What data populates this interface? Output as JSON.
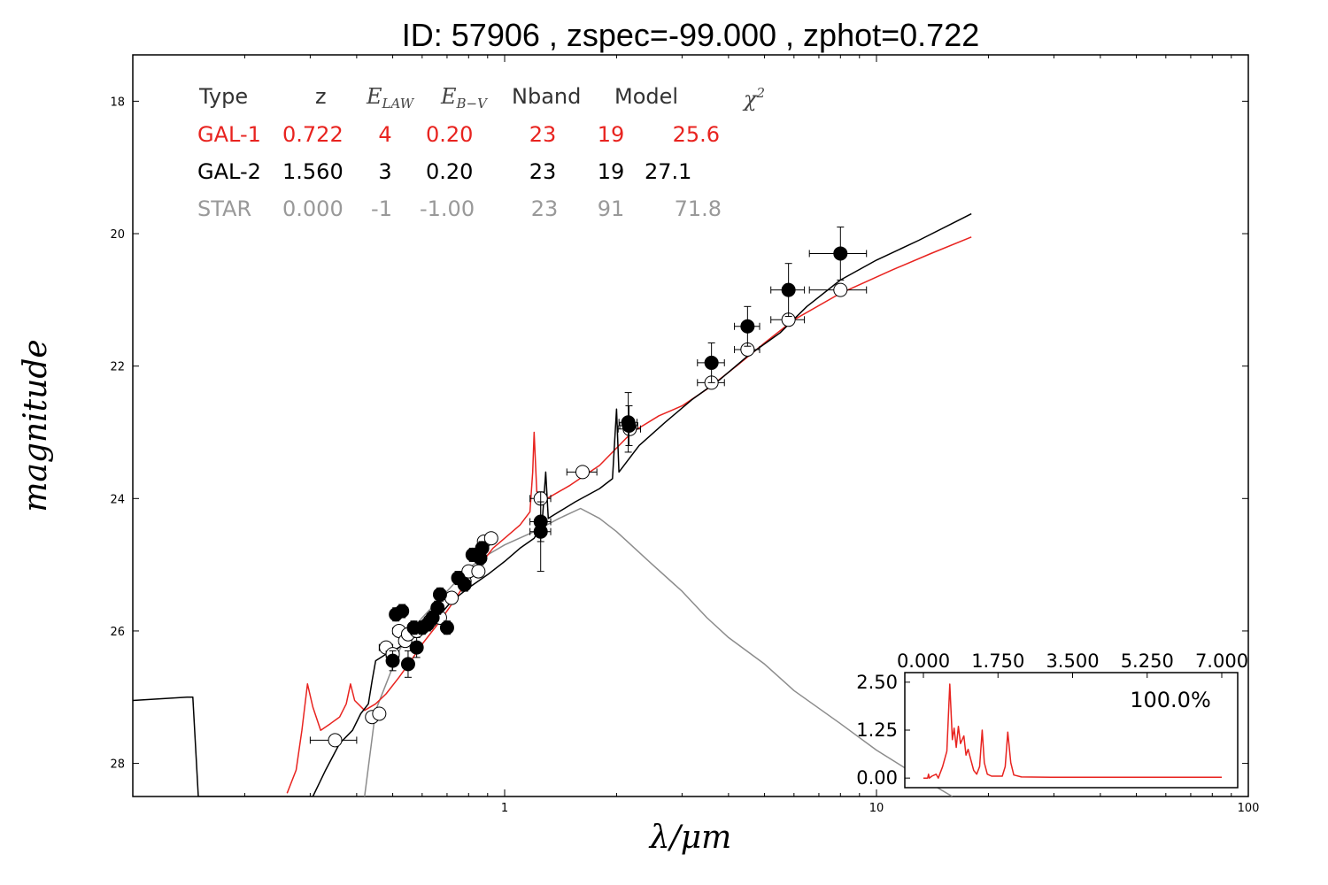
{
  "title": "ID:  57906 , zspec=-99.000 , zphot=0.722",
  "colors": {
    "gal1": "#e8231f",
    "gal2": "#000000",
    "star": "#8c8c8c"
  },
  "table": {
    "headers": {
      "type": "Type",
      "z": "z",
      "elaw": "E",
      "elaw_sub": "LAW",
      "ebv": "E",
      "ebv_sub": "B−V",
      "nband": "Nband",
      "model": "Model",
      "chi2": "χ",
      "chi2_sup": "2"
    },
    "rows": [
      {
        "type": "GAL-1",
        "z": "0.722",
        "elaw": "4",
        "ebv": "0.20",
        "nband": "23",
        "model": "19",
        "chi2": "25.6",
        "color": "#e8231f"
      },
      {
        "type": "GAL-2",
        "z": "1.560",
        "elaw": "3",
        "ebv": "0.20",
        "nband": "23",
        "model": "19",
        "chi2": "27.1",
        "color": "#000000"
      },
      {
        "type": "STAR",
        "z": "0.000",
        "elaw": "-1",
        "ebv": "-1.00",
        "nband": "23",
        "model": "91",
        "chi2": "71.8",
        "color": "#999999"
      }
    ]
  },
  "chart_data": [
    {
      "type": "line",
      "xlabel": "λ/μm",
      "ylabel": "magnitude",
      "xscale": "log",
      "xlim": [
        0.1,
        100
      ],
      "ylim": [
        28.5,
        17.3
      ],
      "x_ticks": [
        "1",
        "10",
        "100"
      ],
      "y_ticks": [
        "18",
        "20",
        "22",
        "24",
        "26",
        "28"
      ],
      "y_tick_values": [
        18,
        20,
        22,
        24,
        26,
        28
      ],
      "x_tick_values": [
        1,
        10,
        100
      ],
      "series": [
        {
          "name": "GAL-1",
          "color": "#e8231f",
          "points": [
            [
              0.26,
              28.45
            ],
            [
              0.275,
              28.1
            ],
            [
              0.285,
              27.5
            ],
            [
              0.295,
              26.8
            ],
            [
              0.305,
              27.15
            ],
            [
              0.32,
              27.5
            ],
            [
              0.34,
              27.4
            ],
            [
              0.36,
              27.3
            ],
            [
              0.375,
              27.1
            ],
            [
              0.385,
              26.8
            ],
            [
              0.395,
              27.05
            ],
            [
              0.42,
              27.2
            ],
            [
              0.45,
              27.1
            ],
            [
              0.48,
              26.95
            ],
            [
              0.52,
              26.7
            ],
            [
              0.56,
              26.45
            ],
            [
              0.6,
              26.2
            ],
            [
              0.66,
              25.9
            ],
            [
              0.72,
              25.6
            ],
            [
              0.78,
              25.3
            ],
            [
              0.86,
              25.0
            ],
            [
              0.93,
              24.75
            ],
            [
              1.0,
              24.6
            ],
            [
              1.1,
              24.4
            ],
            [
              1.17,
              24.2
            ],
            [
              1.19,
              23.6
            ],
            [
              1.2,
              23.0
            ],
            [
              1.22,
              23.9
            ],
            [
              1.3,
              24.0
            ],
            [
              1.5,
              23.8
            ],
            [
              1.8,
              23.5
            ],
            [
              2.2,
              23.0
            ],
            [
              2.6,
              22.75
            ],
            [
              3.0,
              22.6
            ],
            [
              3.5,
              22.35
            ],
            [
              4.2,
              22.0
            ],
            [
              5.0,
              21.65
            ],
            [
              6.0,
              21.3
            ],
            [
              8.0,
              20.9
            ],
            [
              11,
              20.55
            ],
            [
              14,
              20.3
            ],
            [
              18,
              20.05
            ]
          ]
        },
        {
          "name": "GAL-2",
          "color": "#000000",
          "points": [
            [
              0.1,
              27.05
            ],
            [
              0.14,
              27.0
            ],
            [
              0.145,
              27.0
            ],
            [
              0.15,
              28.5
            ],
            [
              0.305,
              28.5
            ],
            [
              0.33,
              28.1
            ],
            [
              0.36,
              27.7
            ],
            [
              0.39,
              27.5
            ],
            [
              0.41,
              27.25
            ],
            [
              0.43,
              27.1
            ],
            [
              0.44,
              26.75
            ],
            [
              0.45,
              26.45
            ],
            [
              0.48,
              26.35
            ],
            [
              0.52,
              26.25
            ],
            [
              0.56,
              26.1
            ],
            [
              0.6,
              25.95
            ],
            [
              0.66,
              25.8
            ],
            [
              0.72,
              25.55
            ],
            [
              0.8,
              25.35
            ],
            [
              0.9,
              25.15
            ],
            [
              1.0,
              24.95
            ],
            [
              1.1,
              24.75
            ],
            [
              1.2,
              24.6
            ],
            [
              1.26,
              24.4
            ],
            [
              1.29,
              23.6
            ],
            [
              1.31,
              24.3
            ],
            [
              1.4,
              24.2
            ],
            [
              1.55,
              24.05
            ],
            [
              1.8,
              23.85
            ],
            [
              1.95,
              23.7
            ],
            [
              2.0,
              22.65
            ],
            [
              2.03,
              23.6
            ],
            [
              2.3,
              23.2
            ],
            [
              2.7,
              22.85
            ],
            [
              3.2,
              22.5
            ],
            [
              3.8,
              22.2
            ],
            [
              4.5,
              21.85
            ],
            [
              5.5,
              21.5
            ],
            [
              6.5,
              21.1
            ],
            [
              8.0,
              20.7
            ],
            [
              10.0,
              20.4
            ],
            [
              13,
              20.1
            ],
            [
              18,
              19.7
            ]
          ]
        },
        {
          "name": "STAR",
          "color": "#8c8c8c",
          "points": [
            [
              0.42,
              28.5
            ],
            [
              0.45,
              27.2
            ],
            [
              0.48,
              26.8
            ],
            [
              0.52,
              26.3
            ],
            [
              0.56,
              26.0
            ],
            [
              0.6,
              25.8
            ],
            [
              0.7,
              25.4
            ],
            [
              0.8,
              25.05
            ],
            [
              0.9,
              24.85
            ],
            [
              1.0,
              24.7
            ],
            [
              1.2,
              24.5
            ],
            [
              1.4,
              24.3
            ],
            [
              1.6,
              24.15
            ],
            [
              1.8,
              24.3
            ],
            [
              2.0,
              24.5
            ],
            [
              2.5,
              25.0
            ],
            [
              3.0,
              25.4
            ],
            [
              3.5,
              25.8
            ],
            [
              4.0,
              26.1
            ],
            [
              5.0,
              26.5
            ],
            [
              6.0,
              26.9
            ],
            [
              8.0,
              27.4
            ],
            [
              10,
              27.8
            ],
            [
              13,
              28.2
            ],
            [
              16,
              28.5
            ]
          ]
        }
      ],
      "filled_points": [
        {
          "x": 0.5,
          "y": 26.45,
          "xerr": 0,
          "yerr": 0.15
        },
        {
          "x": 0.51,
          "y": 25.75,
          "xerr": 0,
          "yerr": 0.1
        },
        {
          "x": 0.53,
          "y": 25.7,
          "xerr": 0.02,
          "yerr": 0.1
        },
        {
          "x": 0.55,
          "y": 26.5,
          "xerr": 0,
          "yerr": 0.2
        },
        {
          "x": 0.57,
          "y": 25.95,
          "xerr": 0.02,
          "yerr": 0.1
        },
        {
          "x": 0.58,
          "y": 26.25,
          "xerr": 0,
          "yerr": 0.15
        },
        {
          "x": 0.6,
          "y": 25.95,
          "xerr": 0.02,
          "yerr": 0.1
        },
        {
          "x": 0.62,
          "y": 25.9,
          "xerr": 0.02,
          "yerr": 0.1
        },
        {
          "x": 0.64,
          "y": 25.8,
          "xerr": 0.02,
          "yerr": 0.1
        },
        {
          "x": 0.66,
          "y": 25.65,
          "xerr": 0.02,
          "yerr": 0.1
        },
        {
          "x": 0.67,
          "y": 25.45,
          "xerr": 0.02,
          "yerr": 0.1
        },
        {
          "x": 0.7,
          "y": 25.95,
          "xerr": 0.02,
          "yerr": 0.1
        },
        {
          "x": 0.75,
          "y": 25.2,
          "xerr": 0.02,
          "yerr": 0.1
        },
        {
          "x": 0.78,
          "y": 25.3,
          "xerr": 0.02,
          "yerr": 0.1
        },
        {
          "x": 0.82,
          "y": 24.85,
          "xerr": 0.02,
          "yerr": 0.1
        },
        {
          "x": 0.86,
          "y": 24.9,
          "xerr": 0.02,
          "yerr": 0.1
        },
        {
          "x": 0.87,
          "y": 24.75,
          "xerr": 0.02,
          "yerr": 0.1
        },
        {
          "x": 1.25,
          "y": 24.35,
          "xerr": 0.08,
          "yerr": 0.3
        },
        {
          "x": 1.25,
          "y": 24.5,
          "xerr": 0.08,
          "yerr": 0.6
        },
        {
          "x": 2.15,
          "y": 22.85,
          "xerr": 0.12,
          "yerr": 0.45
        },
        {
          "x": 2.16,
          "y": 22.9,
          "xerr": 0.12,
          "yerr": 0.3
        },
        {
          "x": 3.6,
          "y": 21.95,
          "xerr": 0.3,
          "yerr": 0.3
        },
        {
          "x": 4.5,
          "y": 21.4,
          "xerr": 0.35,
          "yerr": 0.3
        },
        {
          "x": 5.8,
          "y": 20.85,
          "xerr": 0.6,
          "yerr": 0.4
        },
        {
          "x": 8.0,
          "y": 20.3,
          "xerr": 1.4,
          "yerr": 0.4
        }
      ],
      "open_points": [
        {
          "x": 0.35,
          "y": 27.65,
          "xerr": 0.05,
          "yerr": 0
        },
        {
          "x": 0.44,
          "y": 27.3,
          "xerr": 0,
          "yerr": 0
        },
        {
          "x": 0.46,
          "y": 27.25,
          "xerr": 0,
          "yerr": 0
        },
        {
          "x": 0.48,
          "y": 26.25,
          "xerr": 0.02,
          "yerr": 0
        },
        {
          "x": 0.5,
          "y": 26.35,
          "xerr": 0.02,
          "yerr": 0
        },
        {
          "x": 0.52,
          "y": 26.0,
          "xerr": 0.02,
          "yerr": 0
        },
        {
          "x": 0.54,
          "y": 26.15,
          "xerr": 0.02,
          "yerr": 0
        },
        {
          "x": 0.55,
          "y": 26.05,
          "xerr": 0.02,
          "yerr": 0
        },
        {
          "x": 0.58,
          "y": 26.0,
          "xerr": 0.02,
          "yerr": 0
        },
        {
          "x": 0.6,
          "y": 25.95,
          "xerr": 0.02,
          "yerr": 0
        },
        {
          "x": 0.63,
          "y": 25.85,
          "xerr": 0.02,
          "yerr": 0
        },
        {
          "x": 0.67,
          "y": 25.8,
          "xerr": 0.02,
          "yerr": 0
        },
        {
          "x": 0.72,
          "y": 25.5,
          "xerr": 0.02,
          "yerr": 0
        },
        {
          "x": 0.78,
          "y": 25.25,
          "xerr": 0.02,
          "yerr": 0
        },
        {
          "x": 0.8,
          "y": 25.1,
          "xerr": 0.02,
          "yerr": 0
        },
        {
          "x": 0.85,
          "y": 25.1,
          "xerr": 0.02,
          "yerr": 0
        },
        {
          "x": 0.88,
          "y": 24.65,
          "xerr": 0.02,
          "yerr": 0
        },
        {
          "x": 0.92,
          "y": 24.6,
          "xerr": 0.02,
          "yerr": 0
        },
        {
          "x": 1.25,
          "y": 24.0,
          "xerr": 0.08,
          "yerr": 0
        },
        {
          "x": 1.62,
          "y": 23.6,
          "xerr": 0.15,
          "yerr": 0
        },
        {
          "x": 2.17,
          "y": 22.95,
          "xerr": 0.15,
          "yerr": 0
        },
        {
          "x": 3.6,
          "y": 22.25,
          "xerr": 0.3,
          "yerr": 0
        },
        {
          "x": 4.5,
          "y": 21.75,
          "xerr": 0.35,
          "yerr": 0
        },
        {
          "x": 5.8,
          "y": 21.3,
          "xerr": 0.6,
          "yerr": 0
        },
        {
          "x": 8.0,
          "y": 20.85,
          "xerr": 1.4,
          "yerr": 0
        }
      ]
    },
    {
      "type": "line",
      "label": "100.0%",
      "xlim": [
        0,
        7
      ],
      "ylim": [
        -0.25,
        2.75
      ],
      "x_ticks": [
        "0.000",
        "1.750",
        "3.500",
        "5.250",
        "7.000"
      ],
      "y_ticks": [
        "0.00",
        "1.25",
        "2.50"
      ],
      "x_tick_values": [
        0,
        1.75,
        3.5,
        5.25,
        7.0
      ],
      "y_tick_values": [
        0,
        1.25,
        2.5
      ],
      "series": [
        {
          "color": "#e8231f",
          "points": [
            [
              0.0,
              0.0
            ],
            [
              0.1,
              0.0
            ],
            [
              0.12,
              0.1
            ],
            [
              0.14,
              0.0
            ],
            [
              0.2,
              0.05
            ],
            [
              0.3,
              0.1
            ],
            [
              0.35,
              0.0
            ],
            [
              0.45,
              0.3
            ],
            [
              0.5,
              0.5
            ],
            [
              0.55,
              0.7
            ],
            [
              0.62,
              2.45
            ],
            [
              0.68,
              1.0
            ],
            [
              0.72,
              1.3
            ],
            [
              0.77,
              0.8
            ],
            [
              0.82,
              1.35
            ],
            [
              0.87,
              0.9
            ],
            [
              0.95,
              1.1
            ],
            [
              1.0,
              0.6
            ],
            [
              1.05,
              0.75
            ],
            [
              1.12,
              0.45
            ],
            [
              1.18,
              0.2
            ],
            [
              1.25,
              0.1
            ],
            [
              1.32,
              0.3
            ],
            [
              1.38,
              1.25
            ],
            [
              1.43,
              0.4
            ],
            [
              1.5,
              0.1
            ],
            [
              1.6,
              0.05
            ],
            [
              1.75,
              0.05
            ],
            [
              1.85,
              0.05
            ],
            [
              1.92,
              0.3
            ],
            [
              1.98,
              1.2
            ],
            [
              2.05,
              0.4
            ],
            [
              2.12,
              0.08
            ],
            [
              2.3,
              0.03
            ],
            [
              3.0,
              0.02
            ],
            [
              4.5,
              0.02
            ],
            [
              6.0,
              0.02
            ],
            [
              7.0,
              0.02
            ]
          ]
        }
      ]
    }
  ]
}
